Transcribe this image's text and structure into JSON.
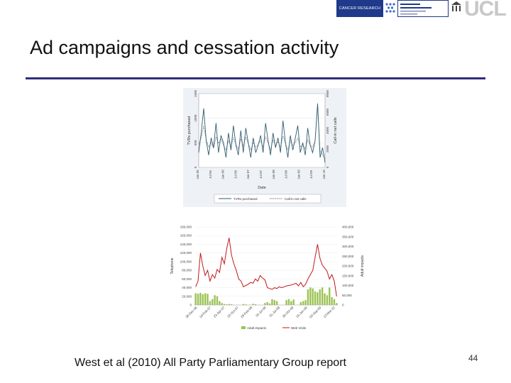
{
  "slide": {
    "title": "Ad campaigns and cessation activity",
    "reference": "West et al (2010) All Party Parliamentary Group report",
    "page_number": "44"
  },
  "logos": {
    "cruk": "CANCER RESEARCH UK",
    "ucl": "UCL"
  },
  "colors": {
    "title_rule": "#2e2e7e",
    "tvr_line": "#2f5d73",
    "calls_line": "#777777",
    "red_line": "#c0181b",
    "bar_fill": "#9bc253"
  },
  "chart_data": [
    {
      "type": "line",
      "xlabel": "Date",
      "ylabel": "TVRs purchased",
      "ylabel_right": "Call-in net calls",
      "x_ticks": [
        "Jan 05",
        "Jul 05",
        "Jan 06",
        "Jul 06",
        "Jan 07",
        "Jul 07",
        "Jan 08",
        "Jul 08",
        "Jan 09",
        "Jul 09",
        "Jan 10"
      ],
      "y_ticks_left": [
        "0",
        "500",
        "1000",
        "1500"
      ],
      "y_ticks_right": [
        "0",
        "2000",
        "4000",
        "6000",
        "8000"
      ],
      "ylim_left": [
        0,
        1500
      ],
      "ylim_right": [
        0,
        8000
      ],
      "legend": [
        "TVRs purchased",
        "Call-in net calls"
      ],
      "legend_position": "bottom",
      "series": [
        {
          "name": "TVRs purchased",
          "axis": "left",
          "values": [
            300,
            700,
            1200,
            550,
            250,
            600,
            400,
            900,
            300,
            650,
            500,
            200,
            700,
            350,
            850,
            450,
            250,
            750,
            300,
            800,
            500,
            200,
            600,
            300,
            450,
            650,
            300,
            900,
            550,
            250,
            700,
            400,
            600,
            300,
            950,
            500,
            200,
            650,
            350,
            600,
            850,
            300,
            500,
            250,
            800,
            450,
            300,
            550,
            1300,
            200,
            400,
            100
          ]
        },
        {
          "name": "Call-in net calls",
          "axis": "right",
          "values": [
            2500,
            3200,
            4500,
            3000,
            2200,
            2700,
            2100,
            3300,
            2600,
            3100,
            2400,
            1900,
            2900,
            2300,
            3200,
            2500,
            2000,
            3100,
            2300,
            3300,
            2600,
            1900,
            2700,
            2200,
            2500,
            2900,
            2200,
            3300,
            2700,
            1900,
            3000,
            2400,
            2800,
            2200,
            3400,
            2600,
            1900,
            2900,
            2400,
            2700,
            3200,
            2200,
            2500,
            2000,
            3000,
            2400,
            2200,
            2800,
            6800,
            1800,
            1400,
            900
          ]
        }
      ]
    },
    {
      "type": "bar",
      "ylabel": "Telephone",
      "ylabel_right": "Adult impacts",
      "y_ticks_left": [
        "0",
        "20,000",
        "40,000",
        "60,000",
        "80,000",
        "100,000",
        "120,000",
        "140,000",
        "160,000",
        "180,000"
      ],
      "y_ticks_right": [
        "0",
        "50,000",
        "100,000",
        "150,000",
        "200,000",
        "250,000",
        "300,000",
        "350,000",
        "400,000"
      ],
      "ylim_left": [
        0,
        180000
      ],
      "ylim_right": [
        0,
        400000
      ],
      "x_ticks": [
        "28-Dec-06",
        "19-Feb-07",
        "23-Apr-07",
        "22-Oct-07",
        "28-Feb-08",
        "15-Jul-08",
        "31-Jul-08",
        "30-Oct-08",
        "15-Jan-09",
        "03-Sep-09",
        "13-Mar-10"
      ],
      "legend": [
        "Adult impacts",
        "Web Visits"
      ],
      "legend_position": "bottom",
      "series": [
        {
          "name": "Adult impacts",
          "axis": "right",
          "kind": "bar",
          "values": [
            60000,
            58000,
            62000,
            55000,
            60000,
            57000,
            20000,
            30000,
            50000,
            45000,
            20000,
            10000,
            5000,
            3000,
            5000,
            4000,
            0,
            0,
            0,
            0,
            5000,
            3000,
            0,
            0,
            6000,
            4000,
            0,
            0,
            0,
            10000,
            15000,
            8000,
            30000,
            25000,
            20000,
            0,
            0,
            0,
            25000,
            30000,
            20000,
            28000,
            0,
            0,
            15000,
            20000,
            25000,
            80000,
            90000,
            85000,
            70000,
            65000,
            80000,
            90000,
            60000,
            50000,
            90000,
            40000,
            30000,
            10000
          ]
        },
        {
          "name": "Web Visits",
          "axis": "left",
          "kind": "line",
          "values": [
            42000,
            55000,
            120000,
            90000,
            68000,
            80000,
            55000,
            70000,
            62000,
            82000,
            75000,
            110000,
            95000,
            130000,
            155000,
            115000,
            95000,
            80000,
            60000,
            55000,
            42000,
            45000,
            48000,
            52000,
            50000,
            60000,
            55000,
            68000,
            62000,
            58000,
            40000,
            38000,
            36000,
            40000,
            38000,
            42000,
            40000,
            42000,
            44000,
            45000,
            46000,
            48000,
            50000,
            44000,
            52000,
            42000,
            48000,
            60000,
            70000,
            80000,
            110000,
            140000,
            108000,
            92000,
            85000,
            78000,
            60000,
            70000,
            55000,
            20000
          ]
        }
      ]
    }
  ]
}
